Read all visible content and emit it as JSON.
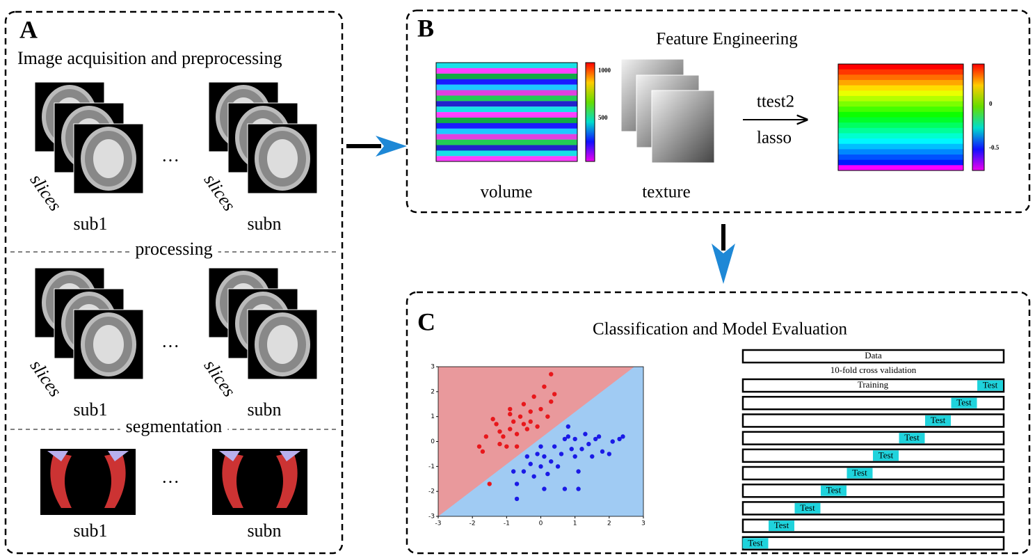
{
  "panel_a": {
    "letter": "A",
    "title": "Image acquisition and preprocessing",
    "stack_label": "slices",
    "ellipsis": "···",
    "rows": [
      {
        "left": "sub1",
        "right": "subn"
      },
      {
        "divider": "processing",
        "left": "sub1",
        "right": "subn"
      },
      {
        "divider": "segmentation",
        "left": "sub1",
        "right": "subn"
      }
    ]
  },
  "panel_b": {
    "letter": "B",
    "title": "Feature Engineering",
    "heatmap_label": "volume",
    "texture_label": "texture",
    "arrow_top": "ttest2",
    "arrow_bottom": "lasso",
    "colorbar_1_ticks": [
      "1000",
      "500"
    ],
    "colorbar_2_ticks": [
      "0",
      "-0.5"
    ]
  },
  "panel_c": {
    "letter": "C",
    "title": "Classification and Model Evaluation",
    "scatter": {
      "xlim": [
        -3,
        3
      ],
      "ylim": [
        -3,
        3
      ],
      "xticks": [
        -3,
        -2,
        -1,
        0,
        1,
        2,
        3
      ],
      "yticks": [
        -3,
        -2,
        -1,
        0,
        1,
        2,
        3
      ],
      "series": [
        {
          "color": "#e8171b",
          "x": [
            -1.8,
            -1.7,
            -1.6,
            -1.5,
            -1.3,
            -1.2,
            -1.2,
            -1.1,
            -1,
            -0.9,
            -0.9,
            -0.8,
            -0.7,
            -0.7,
            -0.6,
            -0.5,
            -0.5,
            -0.4,
            -0.3,
            -0.3,
            -0.2,
            -0.1,
            0,
            0.1,
            0.2,
            0.3,
            0.3,
            0.4,
            -1.4,
            -0.9
          ],
          "y": [
            -0.2,
            -0.4,
            0.2,
            -1.7,
            0.7,
            0.4,
            -0.1,
            0.2,
            -0.2,
            0.5,
            1.1,
            0.8,
            0.3,
            -0.2,
            1,
            0.7,
            1.5,
            0.5,
            1.2,
            0.8,
            1.8,
            0.6,
            1.3,
            2.2,
            1,
            1.6,
            2.7,
            1.9,
            0.9,
            1.3
          ]
        },
        {
          "color": "#1a1ae6",
          "x": [
            -0.8,
            -0.7,
            -0.7,
            -0.5,
            -0.4,
            -0.3,
            -0.2,
            -0.1,
            0,
            0,
            0.1,
            0.1,
            0.2,
            0.3,
            0.4,
            0.5,
            0.6,
            0.7,
            0.7,
            0.8,
            0.9,
            1,
            1.1,
            1.1,
            1.2,
            1.3,
            1.4,
            1.5,
            1.6,
            1.7,
            1.8,
            2,
            2.1,
            2.3,
            2.4,
            0.8,
            1
          ],
          "y": [
            -1.2,
            -1.7,
            -2.3,
            -1.2,
            -0.6,
            -0.9,
            -1.4,
            -0.5,
            -0.2,
            -1,
            -0.6,
            -1.9,
            -1.3,
            -0.8,
            -0.2,
            -1,
            -0.5,
            0.1,
            -1.9,
            0.6,
            -0.3,
            -0.6,
            -1.2,
            -1.9,
            -0.3,
            0.3,
            -0.1,
            -0.6,
            0.1,
            0.2,
            -0.4,
            -0.5,
            0,
            0.1,
            0.2,
            0.2,
            0.1
          ]
        }
      ]
    },
    "cv": {
      "data_label": "Data",
      "caption": "10-fold cross validation",
      "training_label": "Training",
      "test_label": "Test"
    }
  }
}
